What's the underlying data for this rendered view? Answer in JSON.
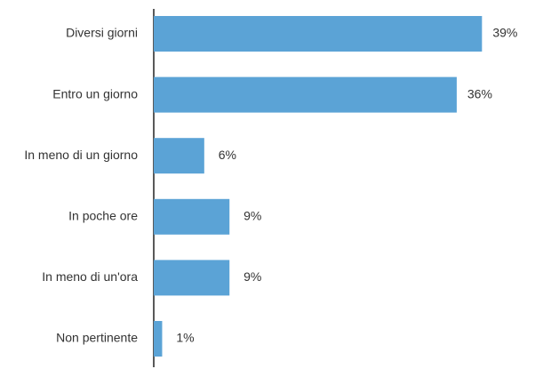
{
  "chart_data": {
    "type": "bar",
    "orientation": "horizontal",
    "categories": [
      "Diversi giorni",
      "Entro un giorno",
      "In meno di un giorno",
      "In poche ore",
      "In meno di un'ora",
      "Non pertinente"
    ],
    "values": [
      39,
      36,
      6,
      9,
      9,
      1
    ],
    "value_labels": [
      "39%",
      "36%",
      "6%",
      "9%",
      "9%",
      "1%"
    ],
    "value_unit": "%",
    "xlim": [
      0,
      40
    ],
    "grid": false,
    "colors": {
      "bar": "#5ba3d6",
      "axis": "#222222",
      "text": "#333333"
    }
  }
}
